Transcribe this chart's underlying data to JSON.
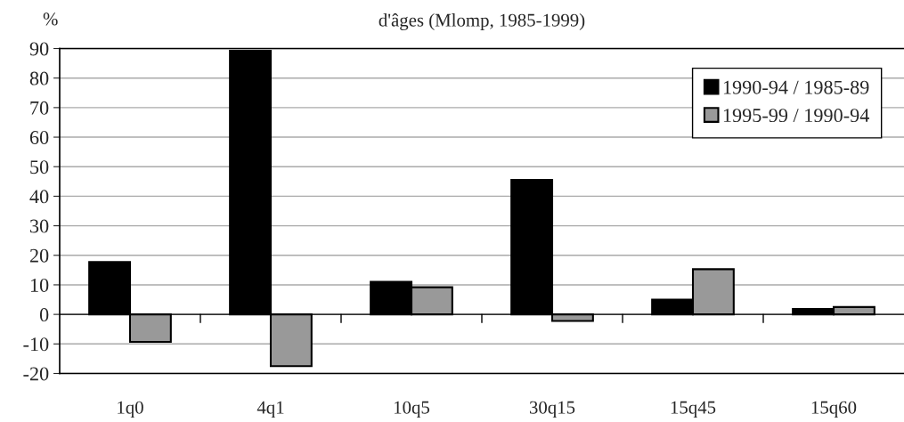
{
  "chart_data": {
    "type": "bar",
    "title": "d'âges (Mlomp, 1985-1999)",
    "ylabel": "%",
    "categories": [
      "1q0",
      "4q1",
      "10q5",
      "30q15",
      "15q45",
      "15q60"
    ],
    "series": [
      {
        "name": "1990-94 / 1985-89",
        "color": "#000000",
        "values": [
          17.7,
          89.2,
          11,
          45.5,
          5,
          1.8
        ]
      },
      {
        "name": "1995-99 / 1990-94",
        "color": "#999999",
        "values": [
          -9.3,
          -17.5,
          9.2,
          -2.2,
          15.3,
          2.5
        ]
      }
    ],
    "ylim": [
      -20,
      90
    ],
    "yticks": [
      -20,
      -10,
      0,
      10,
      20,
      30,
      40,
      50,
      60,
      70,
      80,
      90
    ],
    "grid": "y",
    "legend": "top right"
  }
}
